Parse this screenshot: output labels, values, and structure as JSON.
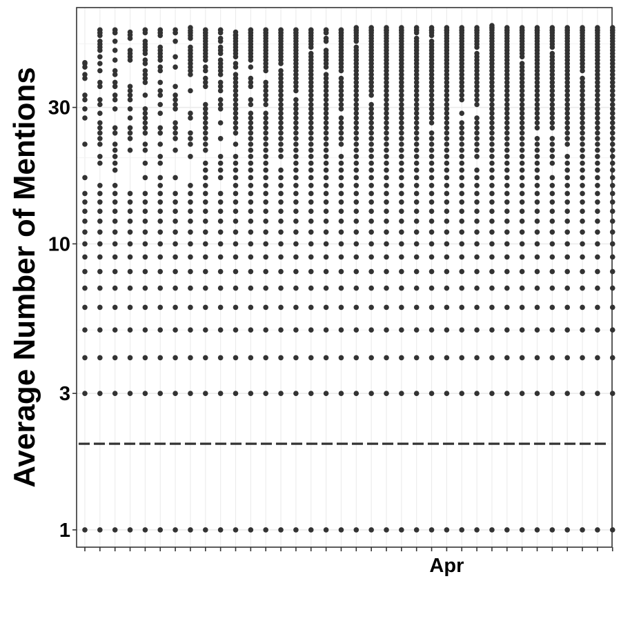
{
  "chart_data": {
    "type": "scatter",
    "title": "",
    "xlabel": "",
    "ylabel": "Average Number of Mentions",
    "y_scale": "log",
    "ylim": [
      0.87,
      67
    ],
    "x_ticks": {
      "count": 36,
      "labels": [
        {
          "index": 24,
          "text": "Apr"
        }
      ]
    },
    "y_ticks": [
      {
        "value": 1,
        "label": "1"
      },
      {
        "value": 3,
        "label": "3"
      },
      {
        "value": 10,
        "label": "10"
      },
      {
        "value": 30,
        "label": "30"
      }
    ],
    "grid": true,
    "reference_line": {
      "y": 2,
      "style": "dashed"
    },
    "point_color": "#333333",
    "column_max": [
      43,
      56,
      56,
      55,
      56,
      56,
      56,
      57,
      56,
      56,
      55,
      56,
      56,
      56,
      56,
      56,
      56,
      56,
      57,
      57,
      57,
      57,
      57,
      57,
      57,
      57,
      57,
      58,
      57,
      57,
      57,
      57,
      57,
      57,
      57,
      57
    ],
    "low_values": [
      1,
      3,
      4,
      5,
      6,
      7,
      8,
      9,
      10,
      11,
      12,
      13,
      14,
      15
    ]
  }
}
